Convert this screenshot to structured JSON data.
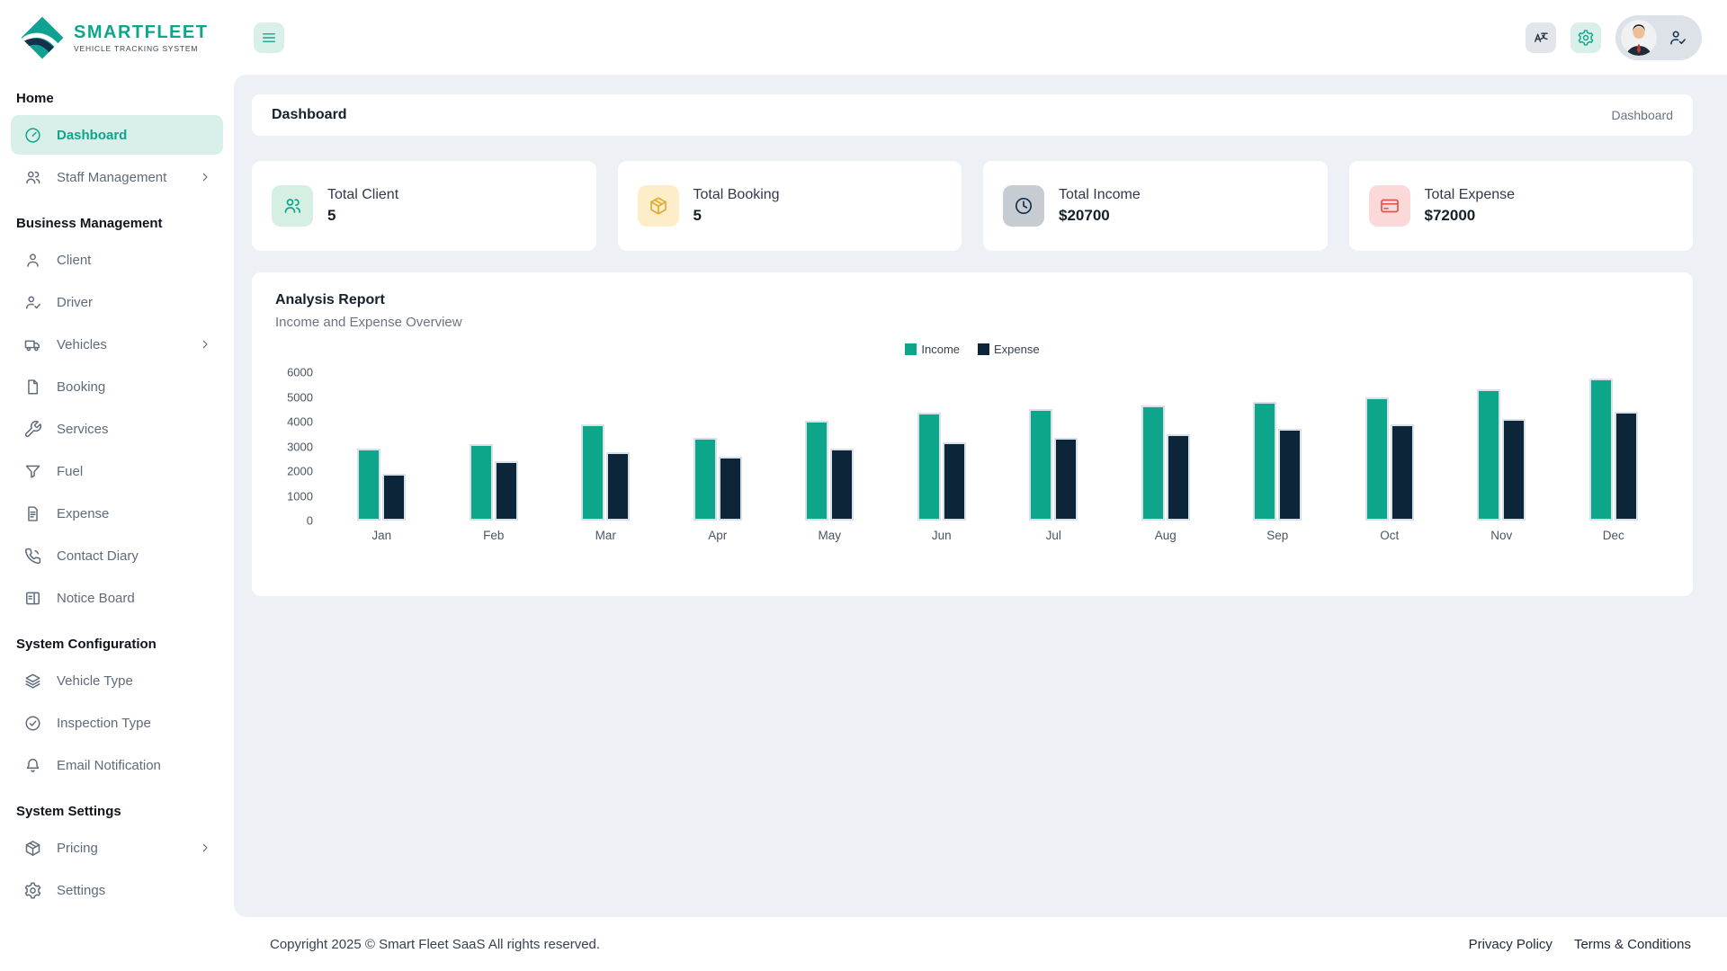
{
  "brand": {
    "name": "SMARTFLEET",
    "tagline": "VEHICLE TRACKING SYSTEM",
    "accent": "#0da68a",
    "navy": "#0d2538"
  },
  "topbar": {
    "buttons": [
      {
        "name": "menu",
        "icon": "hamburger"
      },
      {
        "name": "language",
        "icon": "translate"
      },
      {
        "name": "settings",
        "icon": "gear"
      },
      {
        "name": "profile",
        "icon": "person-check"
      }
    ]
  },
  "sidebar": {
    "sections": [
      {
        "heading": "Home",
        "items": [
          {
            "label": "Dashboard",
            "icon": "speedometer",
            "active": true,
            "chevron": false
          },
          {
            "label": "Staff Management",
            "icon": "users",
            "active": false,
            "chevron": true
          }
        ]
      },
      {
        "heading": "Business Management",
        "items": [
          {
            "label": "Client",
            "icon": "person",
            "active": false,
            "chevron": false
          },
          {
            "label": "Driver",
            "icon": "person-check",
            "active": false,
            "chevron": false
          },
          {
            "label": "Vehicles",
            "icon": "truck",
            "active": false,
            "chevron": true
          },
          {
            "label": "Booking",
            "icon": "file",
            "active": false,
            "chevron": false
          },
          {
            "label": "Services",
            "icon": "wrench",
            "active": false,
            "chevron": false
          },
          {
            "label": "Fuel",
            "icon": "funnel",
            "active": false,
            "chevron": false
          },
          {
            "label": "Expense",
            "icon": "file-text",
            "active": false,
            "chevron": false
          },
          {
            "label": "Contact Diary",
            "icon": "phone",
            "active": false,
            "chevron": false
          },
          {
            "label": "Notice Board",
            "icon": "board",
            "active": false,
            "chevron": false
          }
        ]
      },
      {
        "heading": "System Configuration",
        "items": [
          {
            "label": "Vehicle Type",
            "icon": "layers",
            "active": false,
            "chevron": false
          },
          {
            "label": "Inspection Type",
            "icon": "check-circle",
            "active": false,
            "chevron": false
          },
          {
            "label": "Email Notification",
            "icon": "bell",
            "active": false,
            "chevron": false
          }
        ]
      },
      {
        "heading": "System Settings",
        "items": [
          {
            "label": "Pricing",
            "icon": "package",
            "active": false,
            "chevron": true
          },
          {
            "label": "Settings",
            "icon": "gear",
            "active": false,
            "chevron": false
          }
        ]
      }
    ]
  },
  "breadcrumb": {
    "title": "Dashboard",
    "path": "Dashboard"
  },
  "stats": [
    {
      "label": "Total Client",
      "value": "5",
      "icon": "users",
      "icon_bg": "#d6efe3",
      "icon_color": "#0da68a"
    },
    {
      "label": "Total Booking",
      "value": "5",
      "icon": "package",
      "icon_bg": "#fdeec9",
      "icon_color": "#e3aa33"
    },
    {
      "label": "Total Income",
      "value": "$20700",
      "icon": "clock-history",
      "icon_bg": "#c7ccd3",
      "icon_color": "#14304a"
    },
    {
      "label": "Total Expense",
      "value": "$72000",
      "icon": "credit-card",
      "icon_bg": "#fcd9d9",
      "icon_color": "#e5534b"
    }
  ],
  "chart_card": {
    "title": "Analysis Report",
    "subtitle": "Income and Expense Overview"
  },
  "chart_data": {
    "type": "bar",
    "categories": [
      "Jan",
      "Feb",
      "Mar",
      "Apr",
      "May",
      "Jun",
      "Jul",
      "Aug",
      "Sep",
      "Oct",
      "Nov",
      "Dec"
    ],
    "series": [
      {
        "name": "Income",
        "color": "#0da68a",
        "values": [
          2900,
          3100,
          3900,
          3350,
          4050,
          4350,
          4500,
          4650,
          4800,
          5000,
          5300,
          5750
        ]
      },
      {
        "name": "Expense",
        "color": "#0d2538",
        "values": [
          1900,
          2400,
          2750,
          2600,
          2900,
          3150,
          3350,
          3500,
          3700,
          3900,
          4100,
          4400
        ]
      }
    ],
    "ylim": [
      0,
      6000
    ],
    "yticks": [
      0,
      1000,
      2000,
      3000,
      4000,
      5000,
      6000
    ],
    "xlabel": "",
    "ylabel": "",
    "grid": false,
    "legend_position": "top-center"
  },
  "footer": {
    "copyright": "Copyright 2025 © Smart Fleet SaaS All rights reserved.",
    "links": [
      "Privacy Policy",
      "Terms & Conditions"
    ]
  }
}
